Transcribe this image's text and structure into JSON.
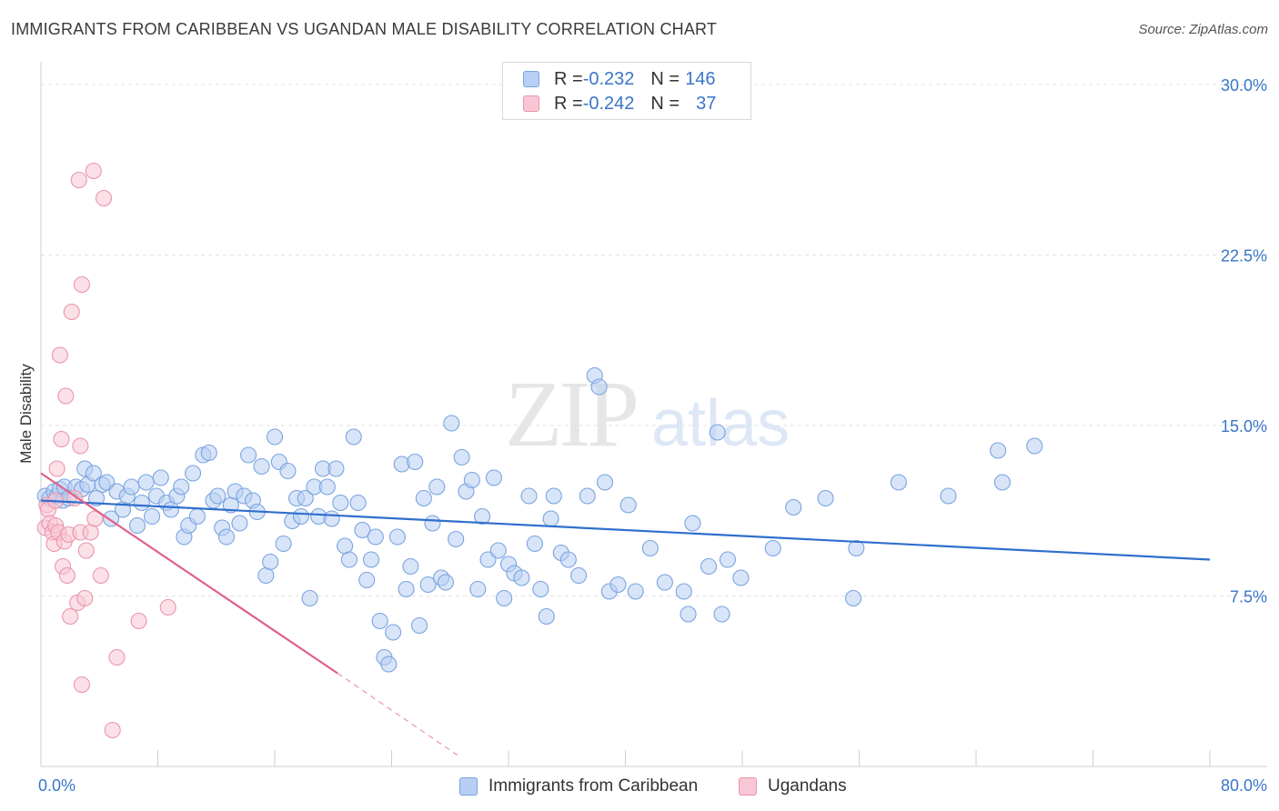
{
  "header": {
    "title": "IMMIGRANTS FROM CARIBBEAN VS UGANDAN MALE DISABILITY CORRELATION CHART",
    "source": "Source: ZipAtlas.com"
  },
  "watermark": {
    "zip": "ZIP",
    "atlas": "atlas"
  },
  "legend_top": {
    "rows": [
      {
        "r_label": "R = ",
        "r_value": "-0.232",
        "n_label": "N = ",
        "n_value": "146",
        "color": "#7aa3e0"
      },
      {
        "r_label": "R = ",
        "r_value": "-0.242",
        "n_label": "N = ",
        "n_value": "37",
        "color": "#ea94ad"
      }
    ]
  },
  "chart_data": {
    "type": "scatter",
    "title": "IMMIGRANTS FROM CARIBBEAN VS UGANDAN MALE DISABILITY CORRELATION CHART",
    "xlabel": "",
    "ylabel": "Male Disability",
    "xlim": [
      0,
      80
    ],
    "ylim": [
      0,
      31
    ],
    "x_tick_labels": [
      "0.0%",
      "80.0%"
    ],
    "y_ticks": [
      7.5,
      15.0,
      22.5,
      30.0
    ],
    "y_tick_labels": [
      "7.5%",
      "15.0%",
      "22.5%",
      "30.0%"
    ],
    "grid": true,
    "legend_position": "bottom",
    "series": [
      {
        "name": "Immigrants from Caribbean",
        "color": "#7aa3e0",
        "fill": "#b8cff3",
        "trend": {
          "x": [
            0,
            80
          ],
          "y": [
            11.7,
            9.1
          ]
        },
        "points": [
          [
            0.3,
            11.9
          ],
          [
            0.6,
            11.8
          ],
          [
            0.9,
            12.1
          ],
          [
            1.1,
            11.9
          ],
          [
            1.3,
            12.2
          ],
          [
            1.5,
            11.7
          ],
          [
            1.6,
            12.3
          ],
          [
            1.9,
            11.8
          ],
          [
            2.4,
            12.3
          ],
          [
            2.8,
            12.2
          ],
          [
            3.0,
            13.1
          ],
          [
            3.2,
            12.4
          ],
          [
            3.6,
            12.9
          ],
          [
            3.8,
            11.8
          ],
          [
            4.2,
            12.4
          ],
          [
            4.5,
            12.5
          ],
          [
            4.8,
            10.9
          ],
          [
            5.2,
            12.1
          ],
          [
            5.6,
            11.3
          ],
          [
            5.9,
            11.9
          ],
          [
            6.2,
            12.3
          ],
          [
            6.6,
            10.6
          ],
          [
            6.9,
            11.6
          ],
          [
            7.2,
            12.5
          ],
          [
            7.6,
            11.0
          ],
          [
            7.9,
            11.9
          ],
          [
            8.2,
            12.7
          ],
          [
            8.6,
            11.6
          ],
          [
            8.9,
            11.3
          ],
          [
            9.3,
            11.9
          ],
          [
            9.6,
            12.3
          ],
          [
            9.8,
            10.1
          ],
          [
            10.1,
            10.6
          ],
          [
            10.4,
            12.9
          ],
          [
            10.7,
            11.0
          ],
          [
            11.1,
            13.7
          ],
          [
            11.5,
            13.8
          ],
          [
            11.8,
            11.7
          ],
          [
            12.1,
            11.9
          ],
          [
            12.4,
            10.5
          ],
          [
            12.7,
            10.1
          ],
          [
            13.0,
            11.5
          ],
          [
            13.3,
            12.1
          ],
          [
            13.6,
            10.7
          ],
          [
            13.9,
            11.9
          ],
          [
            14.2,
            13.7
          ],
          [
            14.5,
            11.7
          ],
          [
            14.8,
            11.2
          ],
          [
            15.1,
            13.2
          ],
          [
            15.4,
            8.4
          ],
          [
            15.7,
            9.0
          ],
          [
            16.0,
            14.5
          ],
          [
            16.3,
            13.4
          ],
          [
            16.6,
            9.8
          ],
          [
            16.9,
            13.0
          ],
          [
            17.2,
            10.8
          ],
          [
            17.5,
            11.8
          ],
          [
            17.8,
            11.0
          ],
          [
            18.1,
            11.8
          ],
          [
            18.4,
            7.4
          ],
          [
            18.7,
            12.3
          ],
          [
            19.0,
            11.0
          ],
          [
            19.3,
            13.1
          ],
          [
            19.6,
            12.3
          ],
          [
            19.9,
            10.9
          ],
          [
            20.2,
            13.1
          ],
          [
            20.5,
            11.6
          ],
          [
            20.8,
            9.7
          ],
          [
            21.1,
            9.1
          ],
          [
            21.4,
            14.5
          ],
          [
            21.7,
            11.6
          ],
          [
            22.0,
            10.4
          ],
          [
            22.3,
            8.2
          ],
          [
            22.6,
            9.1
          ],
          [
            22.9,
            10.1
          ],
          [
            23.2,
            6.4
          ],
          [
            23.5,
            4.8
          ],
          [
            23.8,
            4.5
          ],
          [
            24.1,
            5.9
          ],
          [
            24.4,
            10.1
          ],
          [
            24.7,
            13.3
          ],
          [
            25.0,
            7.8
          ],
          [
            25.3,
            8.8
          ],
          [
            25.6,
            13.4
          ],
          [
            25.9,
            6.2
          ],
          [
            26.2,
            11.8
          ],
          [
            26.5,
            8.0
          ],
          [
            26.8,
            10.7
          ],
          [
            27.1,
            12.3
          ],
          [
            27.4,
            8.3
          ],
          [
            27.7,
            8.1
          ],
          [
            28.1,
            15.1
          ],
          [
            28.4,
            10.0
          ],
          [
            28.8,
            13.6
          ],
          [
            29.1,
            12.1
          ],
          [
            29.5,
            12.6
          ],
          [
            29.9,
            7.8
          ],
          [
            30.2,
            11.0
          ],
          [
            30.6,
            9.1
          ],
          [
            31.0,
            12.7
          ],
          [
            31.3,
            9.5
          ],
          [
            31.7,
            7.4
          ],
          [
            32.0,
            8.9
          ],
          [
            32.4,
            8.5
          ],
          [
            32.9,
            8.3
          ],
          [
            33.4,
            11.9
          ],
          [
            33.8,
            9.8
          ],
          [
            34.2,
            7.8
          ],
          [
            34.6,
            6.6
          ],
          [
            34.9,
            10.9
          ],
          [
            35.1,
            11.9
          ],
          [
            35.6,
            9.4
          ],
          [
            36.1,
            9.1
          ],
          [
            36.8,
            8.4
          ],
          [
            37.4,
            11.9
          ],
          [
            37.9,
            17.2
          ],
          [
            38.2,
            16.7
          ],
          [
            38.6,
            12.5
          ],
          [
            38.9,
            7.7
          ],
          [
            39.5,
            8.0
          ],
          [
            40.2,
            11.5
          ],
          [
            40.7,
            7.7
          ],
          [
            41.7,
            9.6
          ],
          [
            42.7,
            8.1
          ],
          [
            44.0,
            7.7
          ],
          [
            44.3,
            6.7
          ],
          [
            44.6,
            10.7
          ],
          [
            45.7,
            8.8
          ],
          [
            46.3,
            14.7
          ],
          [
            46.6,
            6.7
          ],
          [
            47.0,
            9.1
          ],
          [
            47.9,
            8.3
          ],
          [
            50.1,
            9.6
          ],
          [
            51.5,
            11.4
          ],
          [
            53.7,
            11.8
          ],
          [
            55.6,
            7.4
          ],
          [
            55.8,
            9.6
          ],
          [
            58.7,
            12.5
          ],
          [
            62.1,
            11.9
          ],
          [
            65.5,
            13.9
          ],
          [
            65.8,
            12.5
          ],
          [
            68.0,
            14.1
          ]
        ]
      },
      {
        "name": "Ugandans",
        "color": "#ea94ad",
        "fill": "#f8c6d4",
        "trend": {
          "x": [
            0,
            20.3
          ],
          "y": [
            12.9,
            4.1
          ]
        },
        "trend_dashed": {
          "x": [
            20.3,
            28.5
          ],
          "y": [
            4.1,
            0.5
          ]
        },
        "points": [
          [
            0.3,
            10.5
          ],
          [
            0.4,
            11.5
          ],
          [
            0.5,
            11.3
          ],
          [
            0.6,
            10.7
          ],
          [
            0.8,
            10.3
          ],
          [
            0.9,
            9.8
          ],
          [
            1.0,
            11.7
          ],
          [
            1.0,
            10.6
          ],
          [
            1.1,
            13.1
          ],
          [
            1.2,
            10.3
          ],
          [
            1.3,
            18.1
          ],
          [
            1.4,
            14.4
          ],
          [
            1.5,
            8.8
          ],
          [
            1.6,
            9.9
          ],
          [
            1.7,
            16.3
          ],
          [
            1.8,
            8.4
          ],
          [
            1.9,
            10.2
          ],
          [
            2.0,
            6.6
          ],
          [
            2.1,
            20.0
          ],
          [
            2.3,
            11.8
          ],
          [
            2.5,
            7.2
          ],
          [
            2.6,
            25.8
          ],
          [
            2.7,
            10.3
          ],
          [
            2.7,
            14.1
          ],
          [
            2.8,
            3.6
          ],
          [
            2.8,
            21.2
          ],
          [
            3.0,
            7.4
          ],
          [
            3.1,
            9.5
          ],
          [
            3.4,
            10.3
          ],
          [
            3.6,
            26.2
          ],
          [
            3.7,
            10.9
          ],
          [
            4.1,
            8.4
          ],
          [
            4.3,
            25.0
          ],
          [
            4.9,
            1.6
          ],
          [
            5.2,
            4.8
          ],
          [
            6.7,
            6.4
          ],
          [
            8.7,
            7.0
          ]
        ]
      }
    ]
  },
  "axes": {
    "y_label": "Male Disability",
    "x_min_label": "0.0%",
    "x_max_label": "80.0%"
  },
  "legend_bottom": {
    "items": [
      {
        "label": "Immigrants from Caribbean"
      },
      {
        "label": "Ugandans"
      }
    ]
  }
}
